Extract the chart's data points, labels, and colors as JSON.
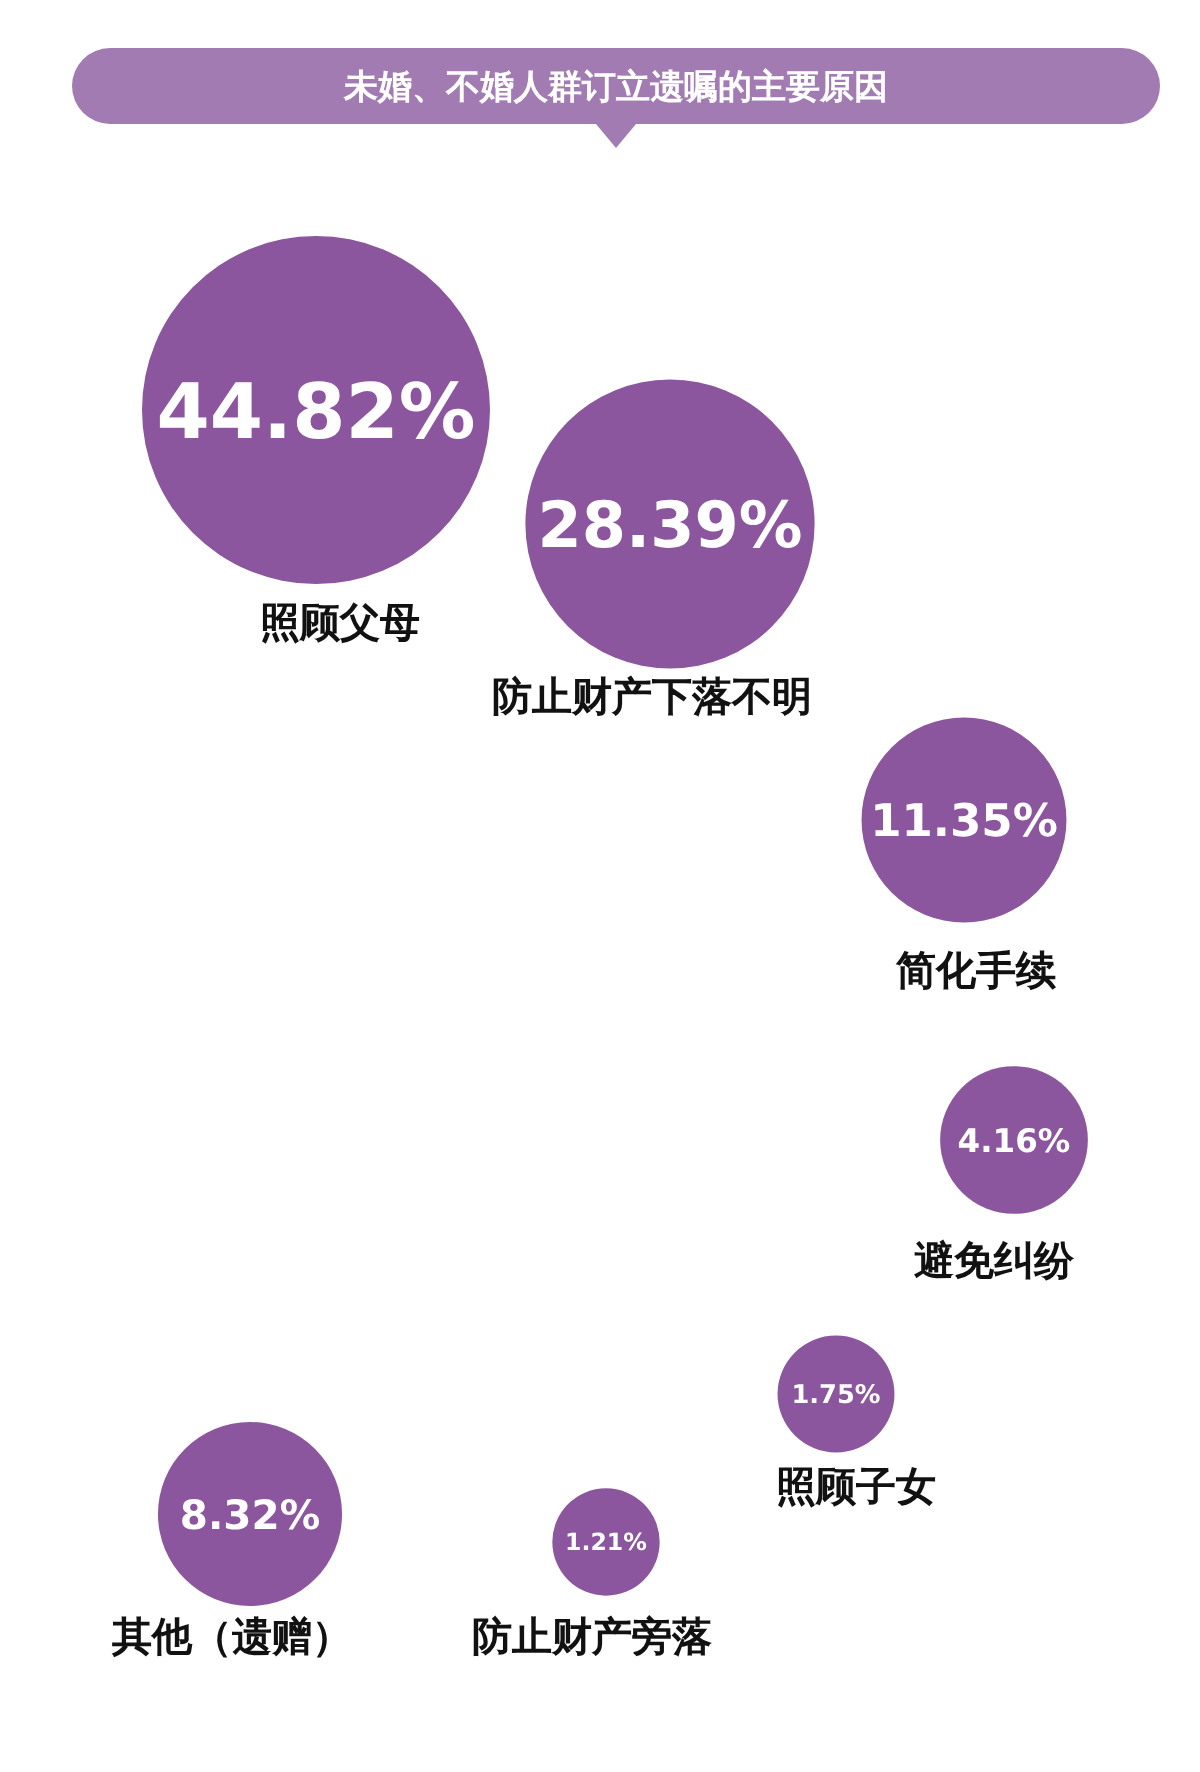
{
  "chart_data": {
    "type": "other",
    "title": "未婚、不婚人群订立遗嘱的主要原因",
    "categories": [
      "照顾父母",
      "防止财产下落不明",
      "简化手续",
      "避免纠纷",
      "照顾子女",
      "防止财产旁落",
      "其他（遗赠）"
    ],
    "values": [
      44.82,
      28.39,
      11.35,
      4.16,
      1.75,
      1.21,
      8.32
    ],
    "value_labels": [
      "44.82%",
      "28.39%",
      "11.35%",
      "4.16%",
      "1.75%",
      "1.21%",
      "8.32%"
    ],
    "color": "#8b569d"
  }
}
